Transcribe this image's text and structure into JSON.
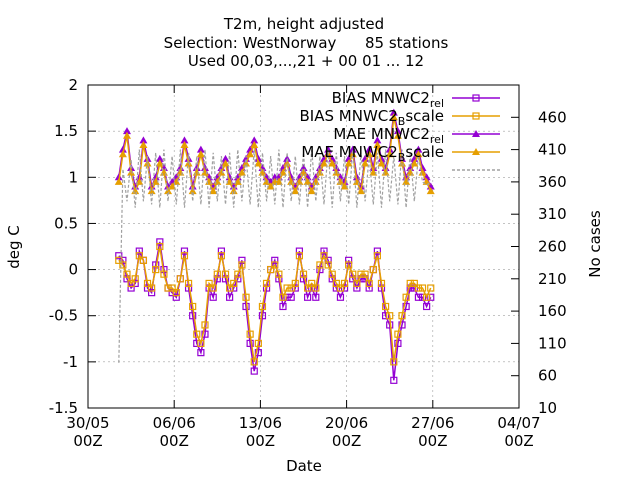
{
  "chart_data": {
    "type": "line",
    "title_lines": [
      "T2m, height adjusted",
      "Selection: WestNorway      85 stations",
      "Used 00,03,...,21 + 00 01 ... 12"
    ],
    "xlabel": "Date",
    "ylabel": "deg C",
    "y2label": "No cases",
    "xlim": [
      "2025-05-30",
      "2025-07-04"
    ],
    "ylim": [
      -1.5,
      2
    ],
    "y2lim": [
      10,
      510
    ],
    "x_ticks": [
      {
        "date": "2025-05-30",
        "line1": "30/05",
        "line2": "00Z"
      },
      {
        "date": "2025-06-06",
        "line1": "06/06",
        "line2": "00Z"
      },
      {
        "date": "2025-06-13",
        "line1": "13/06",
        "line2": "00Z"
      },
      {
        "date": "2025-06-20",
        "line1": "20/06",
        "line2": "00Z"
      },
      {
        "date": "2025-06-27",
        "line1": "27/06",
        "line2": "00Z"
      },
      {
        "date": "2025-07-04",
        "line1": "04/07",
        "line2": "00Z"
      }
    ],
    "y_ticks": [
      "-1.5",
      "-1",
      "-0.5",
      "0",
      "0.5",
      "1",
      "1.5",
      "2"
    ],
    "y2_ticks": [
      "10",
      "60",
      "110",
      "160",
      "210",
      "260",
      "310",
      "360",
      "410",
      "460"
    ],
    "grid": true,
    "legend_position": "top-right",
    "legend": [
      {
        "pre": "BIAS MNWC2",
        "sub": "rel",
        "post": ""
      },
      {
        "pre": "BIAS MNWC2",
        "sub": "B",
        "post": "scale"
      },
      {
        "pre": "MAE MNWC2",
        "sub": "rel",
        "post": ""
      },
      {
        "pre": "MAE MNWC2",
        "sub": "B",
        "post": "scale"
      },
      {
        "pre": "",
        "sub": "",
        "post": ""
      }
    ],
    "series": [
      {
        "name": "BIAS MNWC2rel",
        "axis": "left",
        "marker": "square",
        "color": "#9400d3",
        "y": [
          0.15,
          0.1,
          -0.1,
          -0.2,
          -0.15,
          0.2,
          0.1,
          -0.2,
          -0.25,
          0.05,
          0.3,
          0.0,
          -0.2,
          -0.25,
          -0.3,
          -0.1,
          0.2,
          -0.2,
          -0.5,
          -0.8,
          -0.9,
          -0.7,
          -0.2,
          -0.3,
          -0.1,
          0.2,
          -0.1,
          -0.3,
          -0.2,
          -0.1,
          0.1,
          -0.4,
          -0.8,
          -1.1,
          -0.9,
          -0.5,
          -0.2,
          0.0,
          0.1,
          -0.1,
          -0.4,
          -0.3,
          -0.3,
          -0.2,
          0.2,
          -0.1,
          -0.3,
          -0.2,
          -0.3,
          0.0,
          0.2,
          0.1,
          -0.1,
          -0.2,
          -0.3,
          -0.2,
          0.1,
          -0.1,
          -0.2,
          -0.1,
          -0.1,
          -0.2,
          0.0,
          0.2,
          -0.2,
          -0.5,
          -0.6,
          -1.2,
          -0.8,
          -0.6,
          -0.4,
          -0.2,
          -0.2,
          -0.3,
          -0.3,
          -0.4,
          -0.3
        ]
      },
      {
        "name": "BIAS MNWC2Bscale",
        "axis": "left",
        "marker": "square",
        "color": "#e69f00",
        "y": [
          0.1,
          0.05,
          -0.05,
          -0.15,
          -0.1,
          0.15,
          0.1,
          -0.15,
          -0.2,
          0.0,
          0.25,
          -0.05,
          -0.2,
          -0.2,
          -0.25,
          -0.1,
          0.15,
          -0.15,
          -0.4,
          -0.7,
          -0.8,
          -0.6,
          -0.15,
          -0.2,
          -0.05,
          0.15,
          -0.05,
          -0.2,
          -0.15,
          -0.05,
          0.05,
          -0.3,
          -0.7,
          -1.0,
          -0.8,
          -0.4,
          -0.15,
          0.0,
          0.05,
          -0.05,
          -0.3,
          -0.2,
          -0.2,
          -0.15,
          0.15,
          -0.05,
          -0.2,
          -0.15,
          -0.2,
          0.05,
          0.15,
          0.05,
          -0.05,
          -0.15,
          -0.2,
          -0.15,
          0.05,
          -0.05,
          -0.15,
          -0.05,
          -0.05,
          -0.15,
          0.0,
          0.15,
          -0.15,
          -0.4,
          -0.5,
          -1.0,
          -0.7,
          -0.5,
          -0.3,
          -0.15,
          -0.15,
          -0.2,
          -0.2,
          -0.3,
          -0.2
        ]
      },
      {
        "name": "MAE MNWC2rel",
        "axis": "left",
        "marker": "triangle",
        "color": "#9400d3",
        "y": [
          1.0,
          1.3,
          1.5,
          1.1,
          0.9,
          1.0,
          1.4,
          1.2,
          0.9,
          1.0,
          1.2,
          1.1,
          0.9,
          0.95,
          1.0,
          1.1,
          1.4,
          1.2,
          0.9,
          1.1,
          1.3,
          1.1,
          1.0,
          0.9,
          1.0,
          1.1,
          1.2,
          1.0,
          0.9,
          1.0,
          1.1,
          1.2,
          1.3,
          1.4,
          1.2,
          1.1,
          1.0,
          0.95,
          1.0,
          1.0,
          1.1,
          1.2,
          1.0,
          0.9,
          1.0,
          1.1,
          1.0,
          0.9,
          1.0,
          1.1,
          1.2,
          1.3,
          1.2,
          1.1,
          1.0,
          0.95,
          1.2,
          1.3,
          1.0,
          0.9,
          1.2,
          1.3,
          1.1,
          1.4,
          1.2,
          1.1,
          1.3,
          1.7,
          1.5,
          1.2,
          1.0,
          1.1,
          1.2,
          1.3,
          1.1,
          1.0,
          0.9
        ]
      },
      {
        "name": "MAE MNWC2Bscale",
        "axis": "left",
        "marker": "triangle",
        "color": "#e69f00",
        "y": [
          0.95,
          1.25,
          1.45,
          1.05,
          0.85,
          0.95,
          1.35,
          1.15,
          0.85,
          0.95,
          1.15,
          1.05,
          0.85,
          0.9,
          0.95,
          1.05,
          1.35,
          1.15,
          0.85,
          1.05,
          1.25,
          1.05,
          0.95,
          0.85,
          0.95,
          1.05,
          1.15,
          0.95,
          0.85,
          0.95,
          1.05,
          1.15,
          1.25,
          1.35,
          1.15,
          1.05,
          0.95,
          0.9,
          0.95,
          0.95,
          1.05,
          1.15,
          0.95,
          0.85,
          0.95,
          1.05,
          0.95,
          0.85,
          0.95,
          1.05,
          1.15,
          1.25,
          1.15,
          1.05,
          0.95,
          0.9,
          1.15,
          1.25,
          0.95,
          0.85,
          1.15,
          1.25,
          1.05,
          1.35,
          1.15,
          1.05,
          1.25,
          1.65,
          1.45,
          1.15,
          0.95,
          1.05,
          1.15,
          1.25,
          1.05,
          0.95,
          0.85
        ]
      },
      {
        "name": "",
        "axis": "right",
        "marker": "none",
        "dashed": true,
        "color": "#a0a0a0",
        "y": [
          80,
          380,
          330,
          395,
          320,
          410,
          330,
          400,
          325,
          405,
          320,
          410,
          330,
          400,
          325,
          410,
          320,
          405,
          330,
          400,
          325,
          410,
          320,
          405,
          330,
          400,
          325,
          405,
          320,
          410,
          330,
          400,
          325,
          410,
          320,
          405,
          330,
          400,
          325,
          410,
          320,
          405,
          330,
          400,
          325,
          405,
          320,
          410,
          330,
          400,
          325,
          410,
          320,
          405,
          330,
          400,
          325,
          410,
          320,
          405,
          330,
          400,
          325,
          405,
          320,
          410,
          330,
          400,
          325,
          410,
          320,
          405,
          330,
          400,
          360,
          355,
          360
        ]
      }
    ]
  }
}
